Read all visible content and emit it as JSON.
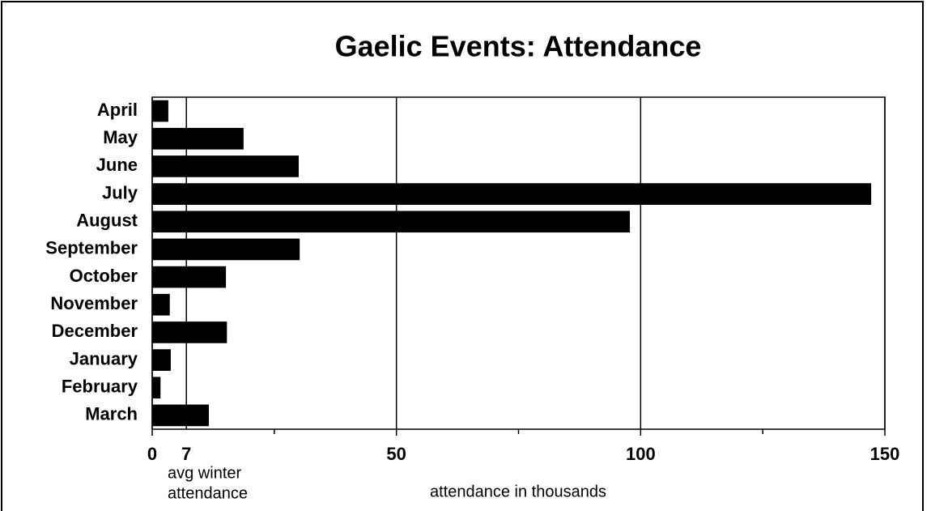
{
  "chart_data": {
    "type": "barh",
    "title": "Gaelic Events: Attendance",
    "x_label": "attendance in thousands",
    "categories": [
      "April",
      "May",
      "June",
      "July",
      "August",
      "September",
      "October",
      "November",
      "December",
      "January",
      "February",
      "March"
    ],
    "values": [
      3.3,
      18.7,
      30,
      147.2,
      97.8,
      30.2,
      15.1,
      3.6,
      15.3,
      3.8,
      1.7,
      11.6
    ],
    "color": "#000000",
    "xlim": [
      0,
      150
    ],
    "xticks": [
      0,
      50,
      100,
      150
    ],
    "xminor_ticks": [
      25,
      75,
      125
    ],
    "grid": true,
    "ref_line": {
      "value": 7,
      "label": "7",
      "annotation": [
        "avg winter",
        "attendance"
      ]
    }
  }
}
